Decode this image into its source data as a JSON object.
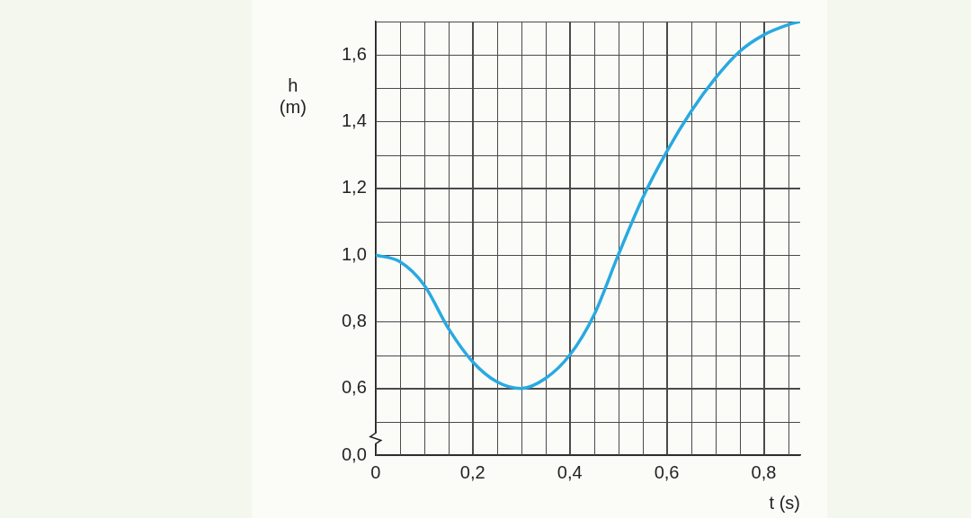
{
  "chart_data": {
    "type": "line",
    "x_label": "t (s)",
    "y_label": "h (m)",
    "x": [
      0,
      0.05,
      0.1,
      0.15,
      0.2,
      0.25,
      0.3,
      0.35,
      0.4,
      0.45,
      0.5,
      0.55,
      0.6,
      0.65,
      0.7,
      0.75,
      0.8,
      0.85,
      0.875
    ],
    "values": [
      1.0,
      0.98,
      0.91,
      0.78,
      0.68,
      0.62,
      0.6,
      0.63,
      0.7,
      0.82,
      1.0,
      1.17,
      1.31,
      1.43,
      1.53,
      1.61,
      1.66,
      1.69,
      1.7
    ],
    "color": "#29a9e1",
    "xlim": [
      0,
      0.875
    ],
    "ylim": [
      0,
      1.7
    ],
    "xticks": [
      0,
      {
        "value": 0.2,
        "label": "0,2"
      },
      {
        "value": 0.4,
        "label": "0,4"
      },
      {
        "value": 0.6,
        "label": "0,6"
      },
      {
        "value": 0.8,
        "label": "0,8"
      }
    ],
    "yticks": [
      {
        "value": 0,
        "label": "0,0"
      },
      {
        "value": 0.6,
        "label": "0,6"
      },
      {
        "value": 0.8,
        "label": "0,8"
      },
      {
        "value": 1,
        "label": "1,0"
      },
      {
        "value": 1.2,
        "label": "1,2"
      },
      {
        "value": 1.4,
        "label": "1,4"
      },
      {
        "value": 1.6,
        "label": "1,6"
      }
    ],
    "grid": true
  }
}
